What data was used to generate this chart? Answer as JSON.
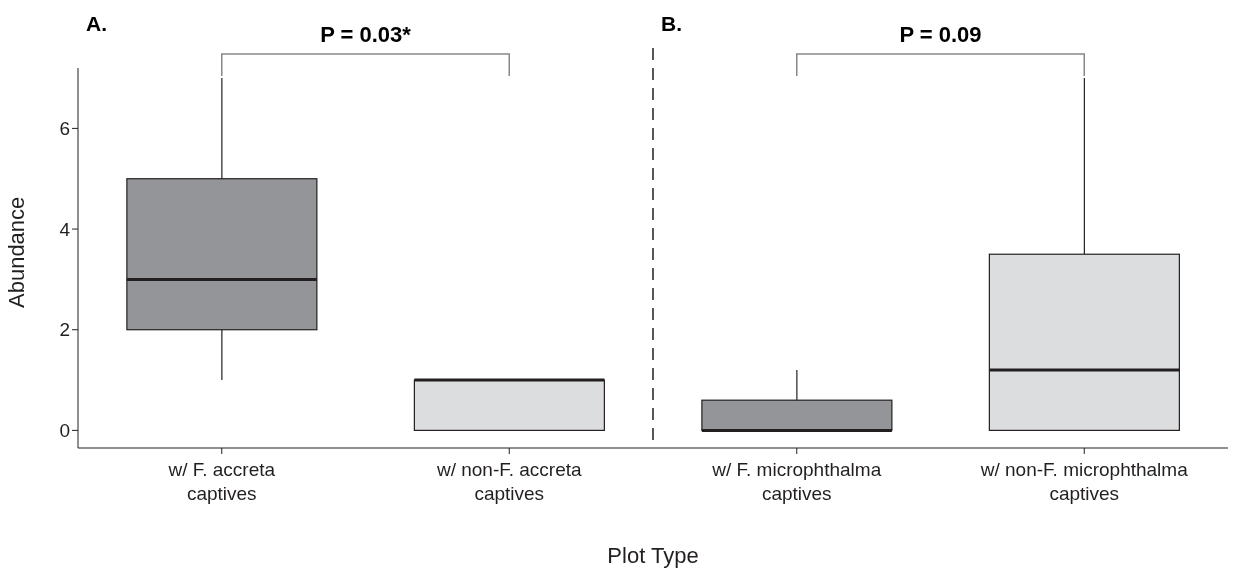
{
  "chart_data": {
    "type": "box",
    "xlabel": "Plot Type",
    "ylabel": "Abundance",
    "categories": [
      "w/ F. accreta captives",
      "w/ non-F. accreta captives",
      "w/ F. microphthalma captives",
      "w/ non-F. microphthalma captives"
    ],
    "boxes": [
      {
        "low": 1,
        "q1": 2,
        "median": 3,
        "q3": 5,
        "high": 7
      },
      {
        "low": 0,
        "q1": 0,
        "median": 1,
        "q3": 1,
        "high": 1
      },
      {
        "low": 0,
        "q1": 0,
        "median": 0,
        "q3": 0.6,
        "high": 1.2
      },
      {
        "low": 0,
        "q1": 0,
        "median": 1.2,
        "q3": 3.5,
        "high": 7
      }
    ],
    "colors": [
      "#939598",
      "#dcdddf",
      "#939598",
      "#dcdddf"
    ],
    "ylim": [
      -0.35,
      7.2
    ],
    "yticks": [
      0,
      2,
      4,
      6
    ],
    "annotations": [
      "A.",
      "P = 0.03*",
      "B.",
      "P = 0.09"
    ]
  }
}
